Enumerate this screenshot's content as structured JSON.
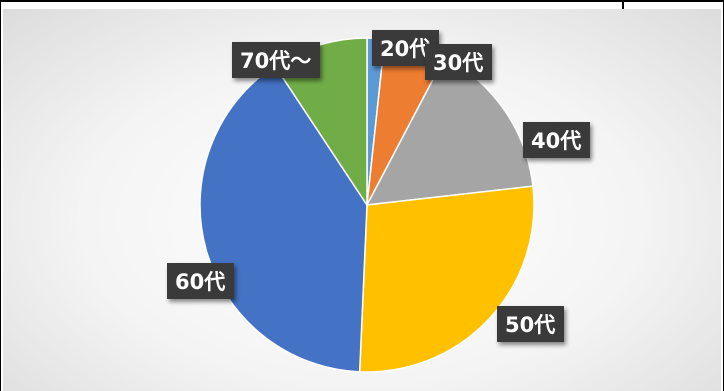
{
  "chart_data": {
    "type": "pie",
    "categories": [
      "20代",
      "30代",
      "40代",
      "50代",
      "60代",
      "70代～"
    ],
    "values": [
      1.7,
      6.0,
      15.5,
      27.5,
      40.0,
      9.3
    ],
    "colors": [
      "#5B9BD5",
      "#ED7D31",
      "#A5A5A5",
      "#FFC000",
      "#4472C4",
      "#70AD47"
    ],
    "data_labels": [
      "20代",
      "30代",
      "40代",
      "50代",
      "60代",
      "70代～"
    ],
    "legend": "none",
    "title": ""
  }
}
